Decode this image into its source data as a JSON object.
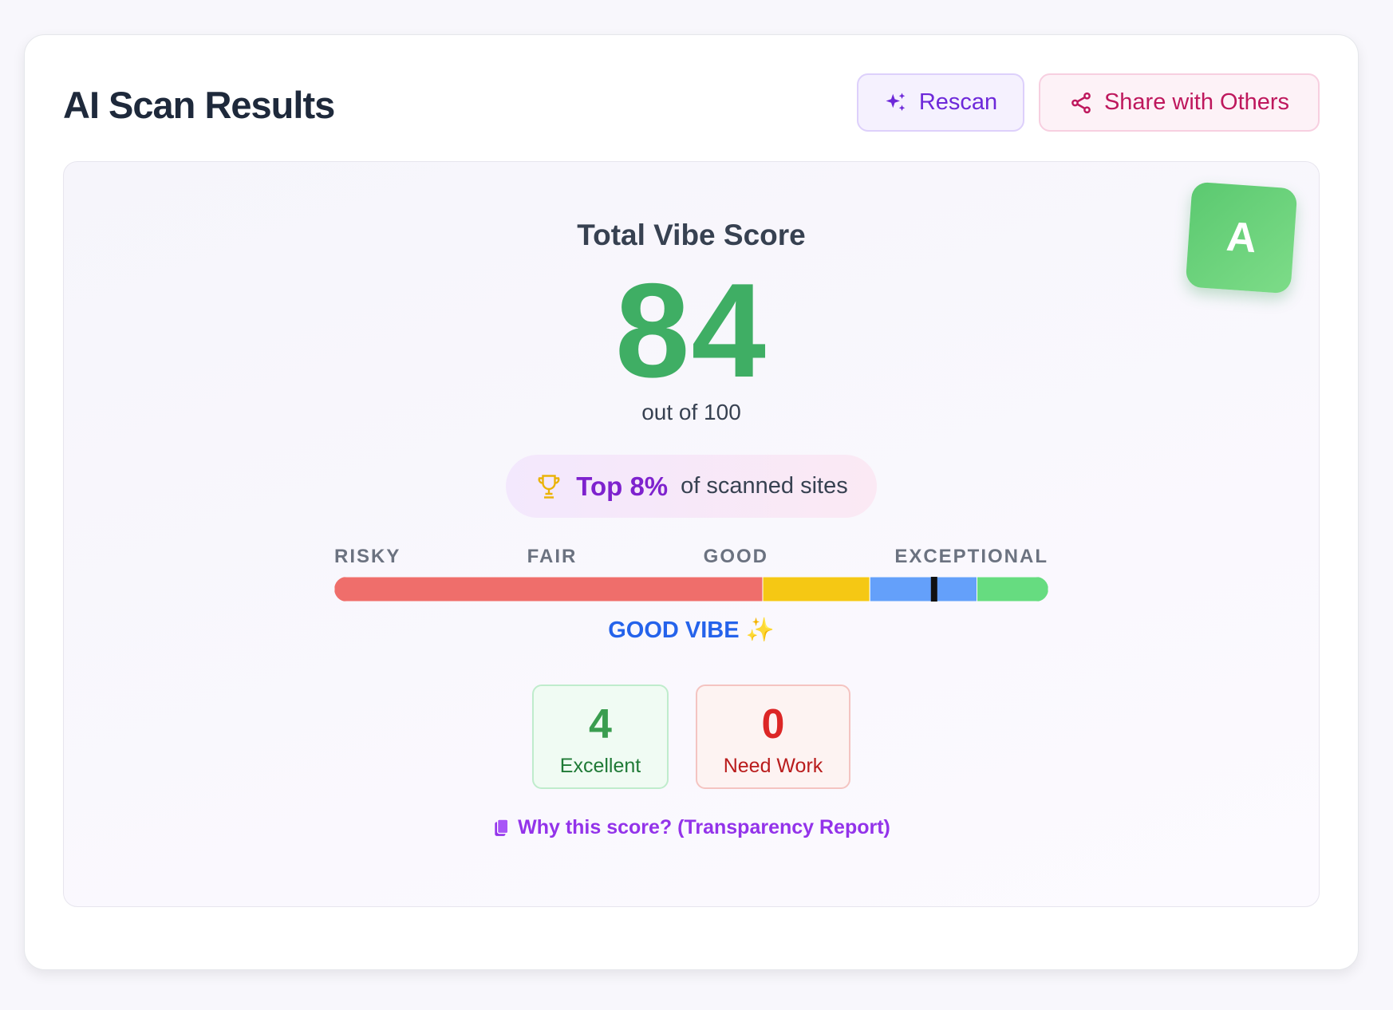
{
  "header": {
    "title": "AI Scan Results",
    "buttons": [
      "Rescan",
      "Share with Others"
    ]
  },
  "score": {
    "heading": "Total Vibe Score",
    "value": 84,
    "max": 100,
    "max_label": "out of 100",
    "grade": "A"
  },
  "rank": {
    "highlight": "Top 8%",
    "text": "of scanned sites"
  },
  "scale": {
    "labels": [
      "RISKY",
      "FAIR",
      "GOOD",
      "EXCEPTIONAL"
    ],
    "segments": [
      {
        "to": 60,
        "color": "#ef6e6b"
      },
      {
        "to": 75,
        "color": "#f5c814"
      },
      {
        "to": 90,
        "color": "#64a0fa"
      },
      {
        "to": 100,
        "color": "#66dc80"
      }
    ],
    "verdict": "GOOD VIBE ✨"
  },
  "stats": [
    {
      "value": 4,
      "label": "Excellent"
    },
    {
      "value": 0,
      "label": "Need Work"
    }
  ],
  "link": "Why this score? (Transparency Report)"
}
